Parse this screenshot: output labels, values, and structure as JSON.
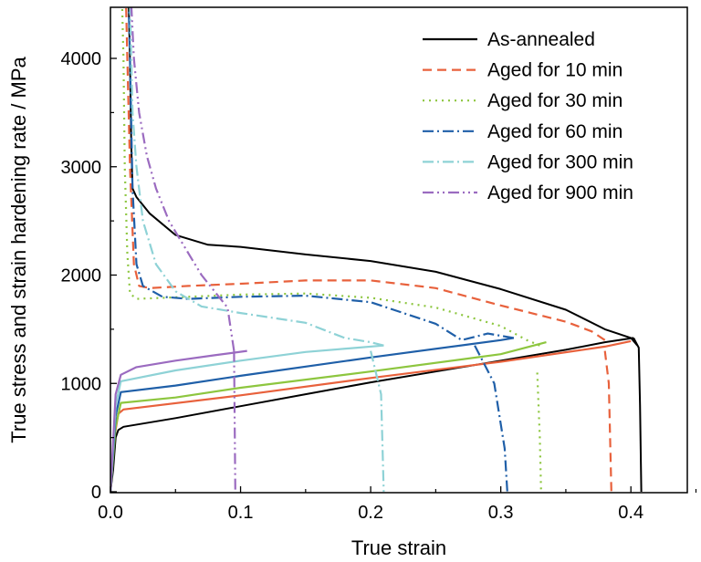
{
  "chart_data": {
    "type": "line",
    "xlabel": "True strain",
    "ylabel": "True stress and strain hardening rate / MPa",
    "xlim": [
      0.0,
      0.45
    ],
    "ylim": [
      0,
      4500
    ],
    "xticks": [
      0.0,
      0.1,
      0.2,
      0.3,
      0.4
    ],
    "xtick_labels": [
      "0.0",
      "0.1",
      "0.2",
      "0.3",
      "0.4"
    ],
    "yticks": [
      0,
      1000,
      2000,
      3000,
      4000
    ],
    "ytick_labels": [
      "0",
      "1000",
      "2000",
      "3000",
      "4000"
    ],
    "grid": false,
    "legend_position": "top-right",
    "series": [
      {
        "name": "As-annealed",
        "color": "#000000",
        "dash": "",
        "stress_curve": [
          [
            0.0,
            0
          ],
          [
            0.002,
            200
          ],
          [
            0.004,
            500
          ],
          [
            0.006,
            570
          ],
          [
            0.01,
            600
          ],
          [
            0.05,
            680
          ],
          [
            0.1,
            790
          ],
          [
            0.15,
            900
          ],
          [
            0.2,
            1010
          ],
          [
            0.25,
            1110
          ],
          [
            0.3,
            1210
          ],
          [
            0.35,
            1310
          ],
          [
            0.38,
            1380
          ],
          [
            0.402,
            1420
          ]
        ],
        "hardening_curve": [
          [
            0.405,
            1350
          ],
          [
            0.4,
            1420
          ],
          [
            0.38,
            1500
          ],
          [
            0.35,
            1680
          ],
          [
            0.3,
            1870
          ],
          [
            0.25,
            2030
          ],
          [
            0.2,
            2130
          ],
          [
            0.15,
            2190
          ],
          [
            0.1,
            2260
          ],
          [
            0.075,
            2280
          ],
          [
            0.05,
            2370
          ],
          [
            0.03,
            2570
          ],
          [
            0.02,
            2720
          ],
          [
            0.017,
            2800
          ],
          [
            0.016,
            3200
          ],
          [
            0.015,
            4000
          ],
          [
            0.014,
            4500
          ]
        ],
        "drop_curve": [
          [
            0.402,
            1420
          ],
          [
            0.406,
            1330
          ],
          [
            0.407,
            800
          ],
          [
            0.408,
            0
          ]
        ]
      },
      {
        "name": "Aged for 10 min",
        "color": "#E8613C",
        "dash": "10,6",
        "stress_curve": [
          [
            0.0,
            0
          ],
          [
            0.003,
            500
          ],
          [
            0.006,
            720
          ],
          [
            0.01,
            760
          ],
          [
            0.1,
            890
          ],
          [
            0.2,
            1050
          ],
          [
            0.3,
            1200
          ],
          [
            0.38,
            1340
          ],
          [
            0.4,
            1390
          ]
        ],
        "hardening_curve": [
          [
            0.38,
            1400
          ],
          [
            0.37,
            1480
          ],
          [
            0.35,
            1570
          ],
          [
            0.3,
            1720
          ],
          [
            0.25,
            1880
          ],
          [
            0.2,
            1950
          ],
          [
            0.15,
            1950
          ],
          [
            0.1,
            1920
          ],
          [
            0.06,
            1900
          ],
          [
            0.03,
            1880
          ],
          [
            0.022,
            1900
          ],
          [
            0.018,
            2100
          ],
          [
            0.015,
            3000
          ],
          [
            0.013,
            4000
          ],
          [
            0.012,
            4500
          ]
        ],
        "drop_curve": [
          [
            0.38,
            1300
          ],
          [
            0.383,
            1000
          ],
          [
            0.385,
            0
          ]
        ]
      },
      {
        "name": "Aged for 30 min",
        "color": "#8DC63F",
        "dash": "2,5",
        "stress_curve": [
          [
            0.0,
            0
          ],
          [
            0.004,
            600
          ],
          [
            0.008,
            820
          ],
          [
            0.05,
            870
          ],
          [
            0.1,
            960
          ],
          [
            0.2,
            1110
          ],
          [
            0.3,
            1270
          ],
          [
            0.335,
            1380
          ]
        ],
        "hardening_curve": [
          [
            0.33,
            1350
          ],
          [
            0.32,
            1400
          ],
          [
            0.3,
            1530
          ],
          [
            0.25,
            1700
          ],
          [
            0.2,
            1790
          ],
          [
            0.15,
            1830
          ],
          [
            0.1,
            1820
          ],
          [
            0.06,
            1800
          ],
          [
            0.02,
            1780
          ],
          [
            0.015,
            1830
          ],
          [
            0.013,
            2200
          ],
          [
            0.011,
            3000
          ],
          [
            0.01,
            4000
          ],
          [
            0.009,
            4500
          ]
        ],
        "drop_curve": [
          [
            0.328,
            1100
          ],
          [
            0.33,
            500
          ],
          [
            0.331,
            0
          ]
        ]
      },
      {
        "name": "Aged for 60 min",
        "color": "#1F5FA8",
        "dash": "12,4,2,4",
        "stress_curve": [
          [
            0.0,
            0
          ],
          [
            0.004,
            700
          ],
          [
            0.008,
            920
          ],
          [
            0.05,
            980
          ],
          [
            0.1,
            1070
          ],
          [
            0.2,
            1240
          ],
          [
            0.3,
            1400
          ],
          [
            0.31,
            1420
          ]
        ],
        "hardening_curve": [
          [
            0.31,
            1420
          ],
          [
            0.29,
            1460
          ],
          [
            0.27,
            1400
          ],
          [
            0.25,
            1550
          ],
          [
            0.2,
            1750
          ],
          [
            0.15,
            1810
          ],
          [
            0.1,
            1800
          ],
          [
            0.06,
            1780
          ],
          [
            0.04,
            1800
          ],
          [
            0.025,
            1900
          ],
          [
            0.02,
            2100
          ],
          [
            0.017,
            2800
          ],
          [
            0.015,
            4000
          ],
          [
            0.014,
            4500
          ]
        ],
        "drop_curve": [
          [
            0.28,
            1350
          ],
          [
            0.295,
            1000
          ],
          [
            0.303,
            400
          ],
          [
            0.305,
            0
          ]
        ]
      },
      {
        "name": "Aged for 300 min",
        "color": "#8ED2D6",
        "dash": "12,4,2,4",
        "stress_curve": [
          [
            0.0,
            0
          ],
          [
            0.004,
            800
          ],
          [
            0.008,
            1020
          ],
          [
            0.05,
            1120
          ],
          [
            0.1,
            1210
          ],
          [
            0.15,
            1290
          ],
          [
            0.21,
            1350
          ]
        ],
        "hardening_curve": [
          [
            0.21,
            1350
          ],
          [
            0.2,
            1380
          ],
          [
            0.18,
            1420
          ],
          [
            0.15,
            1560
          ],
          [
            0.1,
            1650
          ],
          [
            0.07,
            1710
          ],
          [
            0.05,
            1850
          ],
          [
            0.035,
            2100
          ],
          [
            0.025,
            2500
          ],
          [
            0.02,
            3000
          ],
          [
            0.017,
            3500
          ],
          [
            0.015,
            4500
          ]
        ],
        "drop_curve": [
          [
            0.2,
            1300
          ],
          [
            0.208,
            900
          ],
          [
            0.21,
            0
          ]
        ]
      },
      {
        "name": "Aged for 900 min",
        "color": "#9B6BC0",
        "dash": "12,4,2,4,2,4",
        "stress_curve": [
          [
            0.0,
            0
          ],
          [
            0.004,
            900
          ],
          [
            0.008,
            1080
          ],
          [
            0.02,
            1150
          ],
          [
            0.05,
            1210
          ],
          [
            0.08,
            1260
          ],
          [
            0.105,
            1300
          ]
        ],
        "hardening_curve": [
          [
            0.095,
            1300
          ],
          [
            0.09,
            1700
          ],
          [
            0.08,
            1850
          ],
          [
            0.07,
            2000
          ],
          [
            0.06,
            2200
          ],
          [
            0.045,
            2500
          ],
          [
            0.035,
            2800
          ],
          [
            0.028,
            3100
          ],
          [
            0.022,
            3500
          ],
          [
            0.018,
            4000
          ],
          [
            0.016,
            4500
          ]
        ],
        "drop_curve": [
          [
            0.095,
            1300
          ],
          [
            0.096,
            0
          ]
        ]
      }
    ]
  }
}
